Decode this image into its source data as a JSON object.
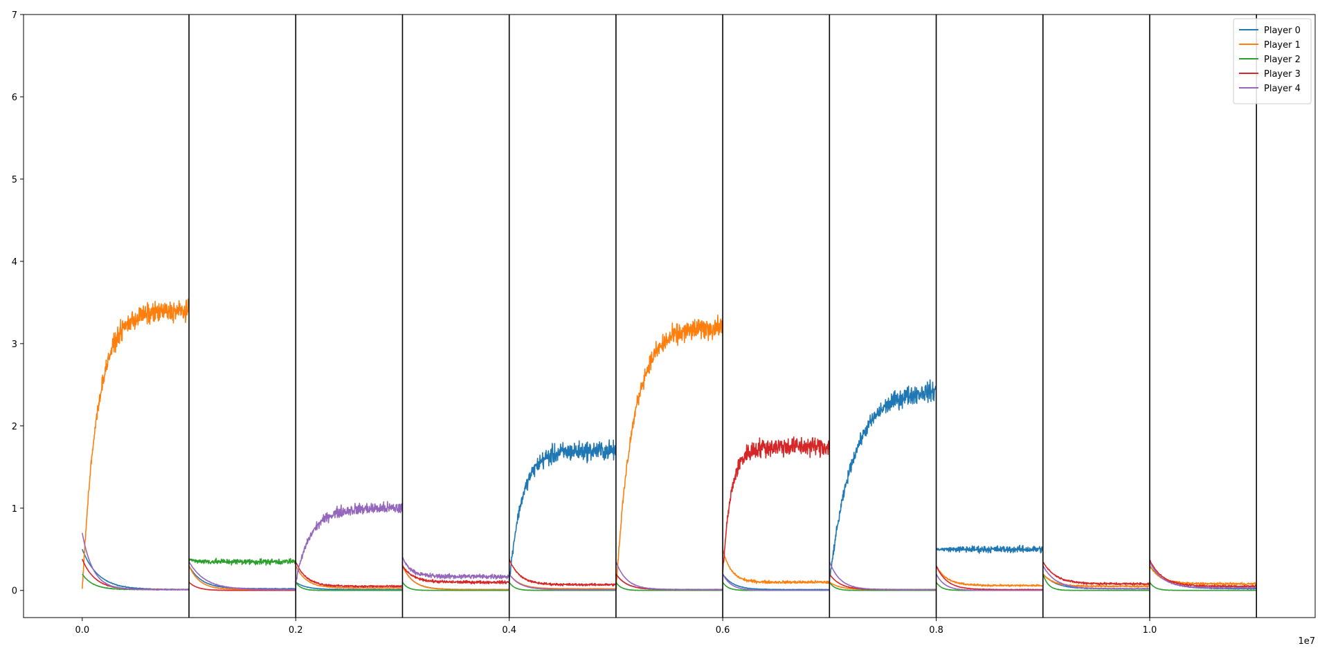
{
  "chart_data": {
    "type": "line",
    "title": "",
    "xlabel": "",
    "ylabel": "",
    "x_scale_label": "1e7",
    "xlim": [
      -0.055,
      1.155
    ],
    "ylim": [
      -0.33,
      7.0
    ],
    "x_ticks": [
      0.0,
      0.2,
      0.4,
      0.6,
      0.8,
      1.0
    ],
    "x_tick_labels": [
      "0.0",
      "0.2",
      "0.4",
      "0.6",
      "0.8",
      "1.0"
    ],
    "y_ticks": [
      0,
      1,
      2,
      3,
      4,
      5,
      6,
      7
    ],
    "y_tick_labels": [
      "0",
      "1",
      "2",
      "3",
      "4",
      "5",
      "6",
      "7"
    ],
    "grid": false,
    "legend_position": "top-right",
    "vertical_lines_x": [
      0.1,
      0.2,
      0.3,
      0.4,
      0.5,
      0.6,
      0.7,
      0.8,
      0.9,
      1.0,
      1.1
    ],
    "segment_starts": [
      0.0,
      0.1,
      0.2,
      0.3,
      0.4,
      0.5,
      0.6,
      0.7,
      0.8,
      0.9,
      1.0
    ],
    "series": [
      {
        "name": "Player 0",
        "color": "#1f77b4",
        "segments": [
          {
            "start": 0.5,
            "plateau": 0.01,
            "tau": 0.015,
            "noise": 0.004
          },
          {
            "start": 0.3,
            "plateau": 0.02,
            "tau": 0.012,
            "noise": 0.004
          },
          {
            "start": 0.1,
            "plateau": 0.01,
            "tau": 0.01,
            "noise": 0.003
          },
          {
            "start": 0.3,
            "plateau": 0.01,
            "tau": 0.01,
            "noise": 0.003
          },
          {
            "start": 0.1,
            "plateau": 1.7,
            "tau": 0.012,
            "noise": 0.1
          },
          {
            "start": 0.2,
            "plateau": 0.01,
            "tau": 0.01,
            "noise": 0.003
          },
          {
            "start": 0.2,
            "plateau": 0.01,
            "tau": 0.01,
            "noise": 0.003
          },
          {
            "start": 0.1,
            "plateau": 2.45,
            "tau": 0.022,
            "noise": 0.1
          },
          {
            "start": 0.5,
            "plateau": 0.5,
            "tau": 0.01,
            "noise": 0.035
          },
          {
            "start": 0.2,
            "plateau": 0.02,
            "tau": 0.012,
            "noise": 0.004
          },
          {
            "start": 0.3,
            "plateau": 0.02,
            "tau": 0.015,
            "noise": 0.004
          }
        ]
      },
      {
        "name": "Player 1",
        "color": "#ff7f0e",
        "segments": [
          {
            "start": 0.0,
            "plateau": 3.4,
            "tau": 0.014,
            "noise": 0.11
          },
          {
            "start": 0.3,
            "plateau": 0.01,
            "tau": 0.01,
            "noise": 0.003
          },
          {
            "start": 0.3,
            "plateau": 0.03,
            "tau": 0.01,
            "noise": 0.004
          },
          {
            "start": 0.3,
            "plateau": 0.01,
            "tau": 0.01,
            "noise": 0.003
          },
          {
            "start": 0.2,
            "plateau": 0.02,
            "tau": 0.01,
            "noise": 0.003
          },
          {
            "start": 0.0,
            "plateau": 3.2,
            "tau": 0.016,
            "noise": 0.11
          },
          {
            "start": 0.5,
            "plateau": 0.1,
            "tau": 0.008,
            "noise": 0.015
          },
          {
            "start": 0.1,
            "plateau": 0.01,
            "tau": 0.01,
            "noise": 0.003
          },
          {
            "start": 0.3,
            "plateau": 0.06,
            "tau": 0.01,
            "noise": 0.01
          },
          {
            "start": 0.2,
            "plateau": 0.05,
            "tau": 0.01,
            "noise": 0.008
          },
          {
            "start": 0.3,
            "plateau": 0.08,
            "tau": 0.01,
            "noise": 0.012
          }
        ]
      },
      {
        "name": "Player 2",
        "color": "#2ca02c",
        "segments": [
          {
            "start": 0.2,
            "plateau": 0.01,
            "tau": 0.01,
            "noise": 0.003
          },
          {
            "start": 0.38,
            "plateau": 0.35,
            "tau": 0.006,
            "noise": 0.03
          },
          {
            "start": 0.1,
            "plateau": 0.0,
            "tau": 0.005,
            "noise": 0.002
          },
          {
            "start": 0.1,
            "plateau": 0.0,
            "tau": 0.005,
            "noise": 0.002
          },
          {
            "start": 0.1,
            "plateau": 0.0,
            "tau": 0.005,
            "noise": 0.002
          },
          {
            "start": 0.1,
            "plateau": 0.0,
            "tau": 0.005,
            "noise": 0.002
          },
          {
            "start": 0.1,
            "plateau": 0.0,
            "tau": 0.005,
            "noise": 0.002
          },
          {
            "start": 0.1,
            "plateau": 0.0,
            "tau": 0.005,
            "noise": 0.002
          },
          {
            "start": 0.1,
            "plateau": 0.0,
            "tau": 0.005,
            "noise": 0.002
          },
          {
            "start": 0.2,
            "plateau": 0.0,
            "tau": 0.005,
            "noise": 0.002
          },
          {
            "start": 0.1,
            "plateau": 0.0,
            "tau": 0.005,
            "noise": 0.002
          }
        ]
      },
      {
        "name": "Player 3",
        "color": "#d62728",
        "segments": [
          {
            "start": 0.38,
            "plateau": 0.01,
            "tau": 0.012,
            "noise": 0.004
          },
          {
            "start": 0.1,
            "plateau": 0.0,
            "tau": 0.008,
            "noise": 0.002
          },
          {
            "start": 0.35,
            "plateau": 0.05,
            "tau": 0.01,
            "noise": 0.01
          },
          {
            "start": 0.3,
            "plateau": 0.1,
            "tau": 0.01,
            "noise": 0.015
          },
          {
            "start": 0.38,
            "plateau": 0.07,
            "tau": 0.01,
            "noise": 0.012
          },
          {
            "start": 0.2,
            "plateau": 0.01,
            "tau": 0.01,
            "noise": 0.003
          },
          {
            "start": 0.2,
            "plateau": 1.75,
            "tau": 0.008,
            "noise": 0.1
          },
          {
            "start": 0.2,
            "plateau": 0.01,
            "tau": 0.01,
            "noise": 0.003
          },
          {
            "start": 0.3,
            "plateau": 0.01,
            "tau": 0.01,
            "noise": 0.003
          },
          {
            "start": 0.35,
            "plateau": 0.08,
            "tau": 0.012,
            "noise": 0.012
          },
          {
            "start": 0.37,
            "plateau": 0.05,
            "tau": 0.012,
            "noise": 0.01
          }
        ]
      },
      {
        "name": "Player 4",
        "color": "#9467bd",
        "segments": [
          {
            "start": 0.7,
            "plateau": 0.01,
            "tau": 0.01,
            "noise": 0.003
          },
          {
            "start": 0.35,
            "plateau": 0.01,
            "tau": 0.015,
            "noise": 0.004
          },
          {
            "start": 0.1,
            "plateau": 1.0,
            "tau": 0.014,
            "noise": 0.06
          },
          {
            "start": 0.4,
            "plateau": 0.17,
            "tau": 0.008,
            "noise": 0.025
          },
          {
            "start": 0.2,
            "plateau": 0.01,
            "tau": 0.01,
            "noise": 0.003
          },
          {
            "start": 0.35,
            "plateau": 0.01,
            "tau": 0.01,
            "noise": 0.003
          },
          {
            "start": 0.2,
            "plateau": 0.0,
            "tau": 0.008,
            "noise": 0.002
          },
          {
            "start": 0.35,
            "plateau": 0.01,
            "tau": 0.01,
            "noise": 0.003
          },
          {
            "start": 0.2,
            "plateau": 0.0,
            "tau": 0.008,
            "noise": 0.002
          },
          {
            "start": 0.3,
            "plateau": 0.02,
            "tau": 0.012,
            "noise": 0.004
          },
          {
            "start": 0.35,
            "plateau": 0.03,
            "tau": 0.012,
            "noise": 0.006
          }
        ]
      }
    ]
  }
}
